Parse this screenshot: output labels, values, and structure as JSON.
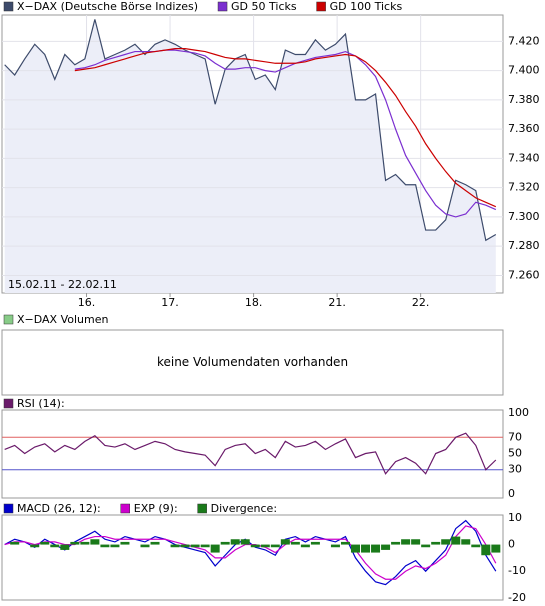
{
  "chart_data": [
    {
      "type": "line",
      "series": [
        {
          "name": "X−DAX (Deutsche Börse Indizes)",
          "color": "#3d4b6b",
          "fill": "#eceef8",
          "values": [
            7404,
            7397,
            7408,
            7418,
            7411,
            7394,
            7411,
            7404,
            7408,
            7435,
            7408,
            7411,
            7414,
            7418,
            7411,
            7418,
            7421,
            7418,
            7414,
            7411,
            7408,
            7377,
            7401,
            7408,
            7411,
            7394,
            7397,
            7387,
            7414,
            7411,
            7411,
            7421,
            7414,
            7418,
            7425,
            7380,
            7380,
            7384,
            7325,
            7329,
            7322,
            7322,
            7291,
            7291,
            7298,
            7325,
            7322,
            7318,
            7284,
            7288
          ]
        },
        {
          "name": "GD 50 Ticks",
          "color": "#7b2fd0",
          "values": [
            null,
            null,
            null,
            null,
            null,
            null,
            null,
            7401,
            7402,
            7404,
            7407,
            7409,
            7411,
            7413,
            7413,
            7413,
            7414,
            7414,
            7413,
            7412,
            7410,
            7405,
            7401,
            7401,
            7402,
            7402,
            7400,
            7399,
            7402,
            7405,
            7407,
            7409,
            7410,
            7411,
            7413,
            7410,
            7404,
            7396,
            7380,
            7360,
            7342,
            7330,
            7318,
            7308,
            7302,
            7300,
            7302,
            7310,
            7308,
            7305
          ]
        },
        {
          "name": "GD 100 Ticks",
          "color": "#cc0000",
          "values": [
            null,
            null,
            null,
            null,
            null,
            null,
            null,
            7400,
            7401,
            7402,
            7404,
            7406,
            7408,
            7410,
            7412,
            7413,
            7414,
            7415,
            7415,
            7414,
            7413,
            7411,
            7409,
            7408,
            7408,
            7407,
            7406,
            7405,
            7405,
            7405,
            7406,
            7408,
            7409,
            7410,
            7411,
            7410,
            7406,
            7400,
            7392,
            7383,
            7372,
            7362,
            7350,
            7340,
            7331,
            7323,
            7318,
            7313,
            7310,
            7307
          ]
        }
      ],
      "x": [
        0.02,
        0.14,
        0.26,
        0.38,
        0.5,
        0.62,
        0.74,
        0.86,
        0.98,
        1.1,
        1.22,
        1.34,
        1.46,
        1.58,
        1.7,
        1.82,
        1.94,
        2.06,
        2.18,
        2.3,
        2.42,
        2.54,
        2.66,
        2.78,
        2.9,
        3.02,
        3.14,
        3.26,
        3.38,
        3.5,
        3.62,
        3.74,
        3.86,
        3.98,
        4.1,
        4.22,
        4.34,
        4.46,
        4.58,
        4.7,
        4.82,
        4.94,
        5.06,
        5.18,
        5.3,
        5.42,
        5.54,
        5.66,
        5.78,
        5.9
      ],
      "xlim": [
        0,
        5.95
      ],
      "xticks": [
        {
          "value": 1,
          "label": "16."
        },
        {
          "value": 2,
          "label": "17."
        },
        {
          "value": 3,
          "label": "18."
        },
        {
          "value": 4,
          "label": "21."
        },
        {
          "value": 5,
          "label": "22."
        }
      ],
      "ylim": [
        7248,
        7438
      ],
      "yticks": [
        {
          "value": 7260,
          "label": "7.260"
        },
        {
          "value": 7280,
          "label": "7.280"
        },
        {
          "value": 7300,
          "label": "7.300"
        },
        {
          "value": 7320,
          "label": "7.320"
        },
        {
          "value": 7340,
          "label": "7.340"
        },
        {
          "value": 7360,
          "label": "7.360"
        },
        {
          "value": 7380,
          "label": "7.380"
        },
        {
          "value": 7400,
          "label": "7.400"
        },
        {
          "value": 7420,
          "label": "7.420"
        }
      ],
      "grid": true,
      "range_label": "15.02.11 - 22.02.11"
    },
    {
      "type": "empty",
      "series": [
        {
          "name": "X−DAX Volumen",
          "color": "#88cc88"
        }
      ],
      "message": "keine Volumendaten vorhanden"
    },
    {
      "type": "line",
      "series": [
        {
          "name": "RSI (14):",
          "color": "#6a1a6a",
          "values": [
            55,
            60,
            50,
            58,
            62,
            52,
            60,
            55,
            65,
            72,
            60,
            58,
            62,
            55,
            60,
            65,
            62,
            55,
            52,
            50,
            48,
            35,
            55,
            60,
            62,
            50,
            55,
            45,
            65,
            58,
            60,
            65,
            55,
            62,
            68,
            45,
            50,
            52,
            25,
            40,
            45,
            38,
            25,
            50,
            55,
            70,
            75,
            60,
            30,
            42
          ]
        }
      ],
      "ylim": [
        -4.9,
        103.7
      ],
      "yticks": [
        0,
        30,
        50,
        70,
        100
      ],
      "bands": [
        {
          "value": 70,
          "color": "#e06060"
        },
        {
          "value": 30,
          "color": "#5555cc"
        }
      ]
    },
    {
      "type": "line",
      "series": [
        {
          "name": "MACD (26, 12):",
          "color": "#0000cc",
          "values": [
            0,
            2,
            1,
            -1,
            2,
            0,
            -2,
            1,
            3,
            5,
            2,
            1,
            3,
            2,
            1,
            3,
            2,
            0,
            -1,
            -2,
            -3,
            -8,
            -4,
            0,
            2,
            -1,
            -2,
            -4,
            2,
            3,
            1,
            3,
            2,
            1,
            3,
            -5,
            -10,
            -14,
            -15,
            -12,
            -8,
            -6,
            -10,
            -6,
            -2,
            6,
            9,
            5,
            -4,
            -10
          ]
        },
        {
          "name": "EXP (9):",
          "color": "#cc00cc",
          "values": [
            0,
            1,
            1,
            0,
            1,
            1,
            0,
            0,
            2,
            3,
            3,
            2,
            2,
            2,
            2,
            2,
            2,
            1,
            0,
            -1,
            -2,
            -5,
            -5,
            -2,
            0,
            0,
            -1,
            -3,
            0,
            2,
            2,
            2,
            2,
            2,
            2,
            -2,
            -7,
            -11,
            -13,
            -13,
            -10,
            -8,
            -9,
            -7,
            -4,
            3,
            7,
            6,
            0,
            -7
          ]
        },
        {
          "name": "Divergence:",
          "color": "#1a7a1a",
          "style": "bar",
          "values": [
            0,
            1,
            0,
            -1,
            1,
            -1,
            -2,
            1,
            1,
            2,
            -1,
            -1,
            1,
            0,
            -1,
            1,
            0,
            -1,
            -1,
            -1,
            -1,
            -3,
            1,
            2,
            2,
            -1,
            -1,
            -1,
            2,
            1,
            -1,
            1,
            0,
            -1,
            1,
            -3,
            -3,
            -3,
            -2,
            1,
            2,
            2,
            -1,
            1,
            2,
            3,
            2,
            -1,
            -4,
            -3
          ]
        }
      ],
      "ylim": [
        -20.8,
        11.1
      ],
      "yticks": [
        -20,
        -10,
        0,
        10
      ]
    }
  ]
}
